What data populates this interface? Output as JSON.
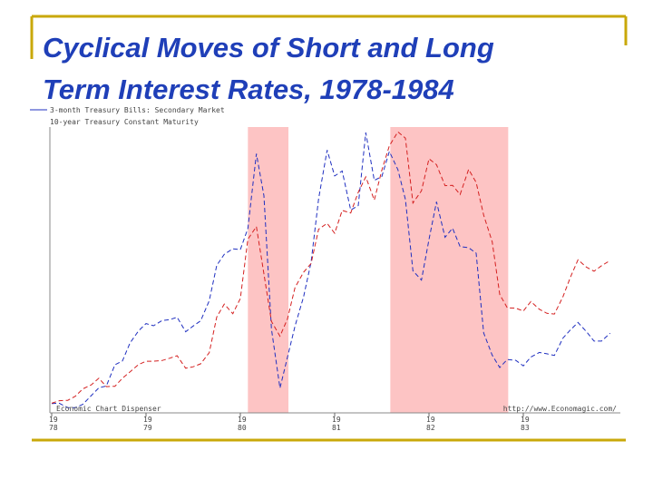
{
  "chart_data": {
    "type": "line",
    "title": [
      "Cyclical Moves of  Short and Long",
      "Term Interest Rates, 1978-1984"
    ],
    "source_left": "Economic Chart Dispenser",
    "source_right": "http://www.Economagic.com/",
    "x": [
      1978.0,
      1978.08,
      1978.17,
      1978.25,
      1978.33,
      1978.42,
      1978.5,
      1978.58,
      1978.67,
      1978.75,
      1978.83,
      1978.92,
      1979.0,
      1979.08,
      1979.17,
      1979.25,
      1979.33,
      1979.42,
      1979.5,
      1979.58,
      1979.67,
      1979.75,
      1979.83,
      1979.92,
      1980.0,
      1980.08,
      1980.17,
      1980.25,
      1980.33,
      1980.42,
      1980.5,
      1980.58,
      1980.67,
      1980.75,
      1980.83,
      1980.92,
      1981.0,
      1981.08,
      1981.17,
      1981.25,
      1981.33,
      1981.42,
      1981.5,
      1981.58,
      1981.67,
      1981.75,
      1981.83,
      1981.92,
      1982.0,
      1982.08,
      1982.17,
      1982.25,
      1982.33,
      1982.42,
      1982.5,
      1982.58,
      1982.67,
      1982.75,
      1982.83,
      1982.92,
      1983.0,
      1983.08,
      1983.17,
      1983.25,
      1983.33,
      1983.42,
      1983.5,
      1983.58,
      1983.67,
      1983.75,
      1983.83,
      1983.92
    ],
    "series": [
      {
        "name": "3-month Treasury Bills: Secondary Market",
        "color": "#1f2fc0",
        "axis": "y",
        "values": [
          6.44,
          6.45,
          6.29,
          6.29,
          6.41,
          6.73,
          7.01,
          7.08,
          7.85,
          7.99,
          8.64,
          9.08,
          9.35,
          9.27,
          9.46,
          9.49,
          9.58,
          9.05,
          9.26,
          9.45,
          10.18,
          11.47,
          11.87,
          12.07,
          12.04,
          12.81,
          15.53,
          14.0,
          9.15,
          7.0,
          8.13,
          9.26,
          10.32,
          11.58,
          13.89,
          15.66,
          14.72,
          14.9,
          13.48,
          13.64,
          16.3,
          14.56,
          14.7,
          15.61,
          14.95,
          13.87,
          11.27,
          10.93,
          12.41,
          13.78,
          12.49,
          12.82,
          12.15,
          12.11,
          11.91,
          9.01,
          8.2,
          7.75,
          8.04,
          8.01,
          7.81,
          8.13,
          8.3,
          8.25,
          8.19,
          8.82,
          9.12,
          9.39,
          9.05,
          8.71,
          8.71,
          9.0
        ]
      },
      {
        "name": "10-year Treasury Constant Maturity",
        "color": "#d42020",
        "axis": "y2",
        "values": [
          7.96,
          8.03,
          8.04,
          8.15,
          8.35,
          8.46,
          8.64,
          8.41,
          8.42,
          8.64,
          8.81,
          9.01,
          9.1,
          9.1,
          9.12,
          9.18,
          9.25,
          8.91,
          8.95,
          9.03,
          9.33,
          10.3,
          10.65,
          10.39,
          10.8,
          12.41,
          12.75,
          11.47,
          10.18,
          9.78,
          10.25,
          11.1,
          11.51,
          11.75,
          12.68,
          12.84,
          12.57,
          13.19,
          13.12,
          13.68,
          14.1,
          13.47,
          14.28,
          14.94,
          15.32,
          15.15,
          13.39,
          13.72,
          14.59,
          14.43,
          13.86,
          13.87,
          13.62,
          14.3,
          13.95,
          13.06,
          12.34,
          10.91,
          10.55,
          10.54,
          10.46,
          10.72,
          10.51,
          10.4,
          10.38,
          10.85,
          11.38,
          11.85,
          11.65,
          11.54,
          11.69,
          11.83
        ]
      }
    ],
    "recessions": [
      [
        1980.08,
        1980.51
      ],
      [
        1981.59,
        1982.84
      ]
    ],
    "recession_color": "#fdc4c4",
    "xlim": [
      1978,
      1984
    ],
    "xticks": [
      {
        "value": 1978,
        "label": "19 78"
      },
      {
        "value": 1979,
        "label": "19 79"
      },
      {
        "value": 1980,
        "label": "19 80"
      },
      {
        "value": 1981,
        "label": "19 81"
      },
      {
        "value": 1982,
        "label": "19 82"
      },
      {
        "value": 1983,
        "label": "19 83"
      }
    ],
    "ylim": [
      6.1,
      16.5
    ],
    "y2lim": [
      7.7,
      15.45
    ]
  }
}
